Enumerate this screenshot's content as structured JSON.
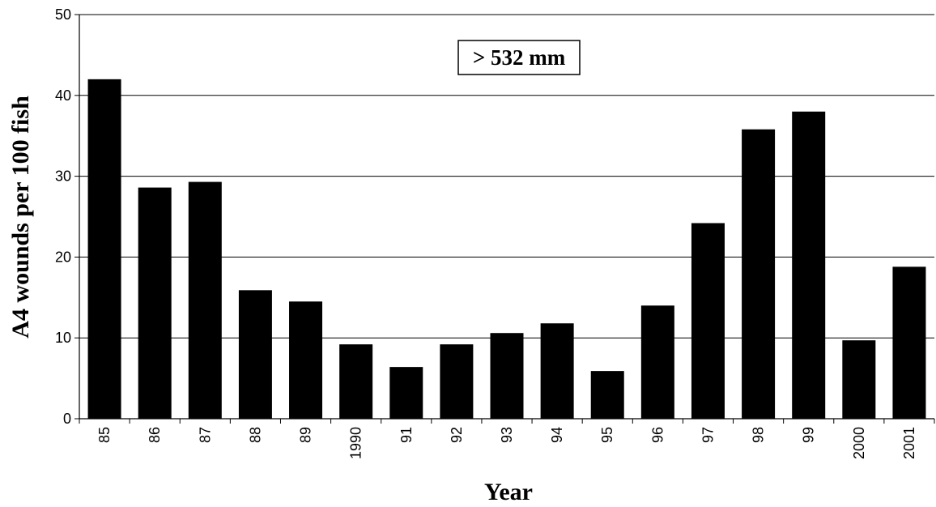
{
  "chart_data": {
    "type": "bar",
    "title": "",
    "xlabel": "Year",
    "ylabel": "A4 wounds per 100 fish",
    "annotation": "> 532 mm",
    "categories": [
      "85",
      "86",
      "87",
      "88",
      "89",
      "1990",
      "91",
      "92",
      "93",
      "94",
      "95",
      "96",
      "97",
      "98",
      "99",
      "2000",
      "2001"
    ],
    "values": [
      42.0,
      28.6,
      29.3,
      15.9,
      14.5,
      9.2,
      6.4,
      9.2,
      10.6,
      11.8,
      5.9,
      14.0,
      24.2,
      35.8,
      38.0,
      9.7,
      18.8
    ],
    "ylim": [
      0,
      50
    ],
    "yticks": [
      0,
      10,
      20,
      30,
      40,
      50
    ],
    "grid": true,
    "legend": "none",
    "bar_color": "#000000"
  }
}
